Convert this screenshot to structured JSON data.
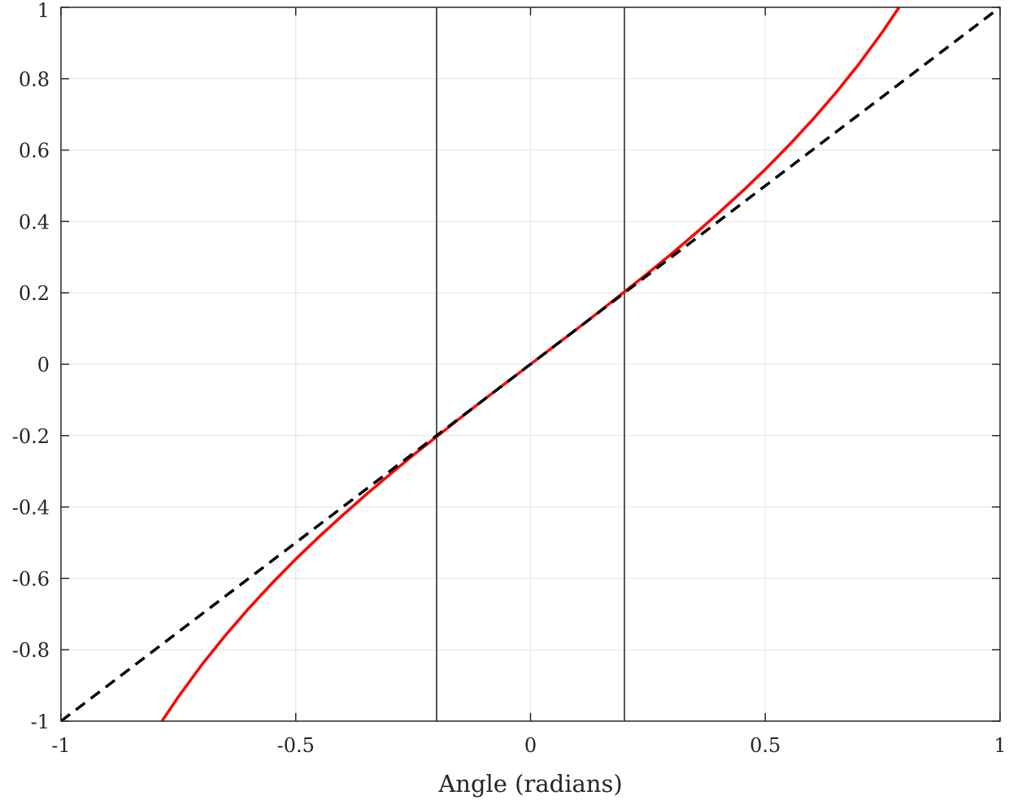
{
  "chart_data": {
    "type": "line",
    "title": "",
    "xlabel": "Angle (radians)",
    "ylabel": "",
    "xlim": [
      -1,
      1
    ],
    "ylim": [
      -1,
      1
    ],
    "grid": true,
    "legend": "none",
    "x_ticks": [
      -1,
      -0.5,
      0,
      0.5,
      1
    ],
    "x_tick_labels": [
      "-1",
      "-0.5",
      "0",
      "0.5",
      "1"
    ],
    "y_ticks": [
      -1,
      -0.8,
      -0.6,
      -0.4,
      -0.2,
      0,
      0.2,
      0.4,
      0.6,
      0.8,
      1
    ],
    "y_tick_labels": [
      "-1",
      "-0.8",
      "-0.6",
      "-0.4",
      "-0.2",
      "0",
      "0.2",
      "0.4",
      "0.6",
      "0.8",
      "1"
    ],
    "series": [
      {
        "color": "#ff0000",
        "style": "solid",
        "x": [
          -0.785,
          -0.75,
          -0.7,
          -0.65,
          -0.6,
          -0.55,
          -0.5,
          -0.45,
          -0.4,
          -0.35,
          -0.3,
          -0.25,
          -0.2,
          -0.15,
          -0.1,
          -0.05,
          0,
          0.05,
          0.1,
          0.15,
          0.2,
          0.25,
          0.3,
          0.35,
          0.4,
          0.45,
          0.5,
          0.55,
          0.6,
          0.65,
          0.7,
          0.75,
          0.785
        ],
        "y": [
          -1.0,
          -0.932,
          -0.842,
          -0.76,
          -0.684,
          -0.613,
          -0.546,
          -0.483,
          -0.423,
          -0.365,
          -0.309,
          -0.255,
          -0.203,
          -0.151,
          -0.1,
          -0.05,
          0.0,
          0.05,
          0.1,
          0.151,
          0.203,
          0.255,
          0.309,
          0.365,
          0.423,
          0.483,
          0.546,
          0.613,
          0.684,
          0.76,
          0.842,
          0.932,
          1.0
        ]
      },
      {
        "color": "#000000",
        "style": "dashed",
        "x": [
          -1,
          1
        ],
        "y": [
          -1,
          1
        ]
      }
    ],
    "vertical_lines": [
      {
        "x": -0.2,
        "color": "#555555"
      },
      {
        "x": 0.2,
        "color": "#555555"
      }
    ]
  }
}
